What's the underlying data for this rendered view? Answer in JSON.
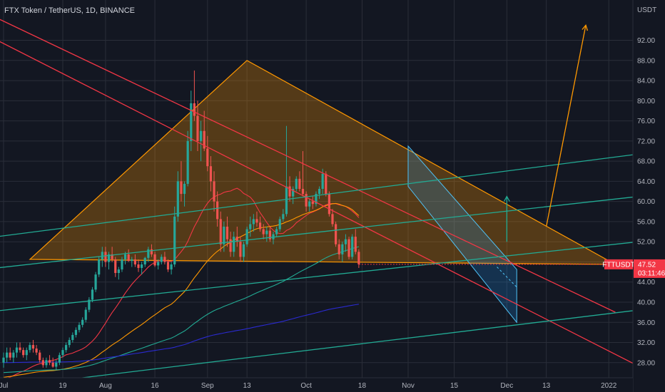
{
  "header": {
    "title": "FTX Token / TetherUS, 1D, BINANCE"
  },
  "colors": {
    "background": "#131722",
    "grid": "#2a2e39",
    "text": "#b2b5be",
    "up": "#26a69a",
    "down": "#ef5350",
    "triangle": "#ff9800",
    "red_line": "#f23645",
    "teal_line": "#22ab94",
    "blue_ma": "#2a2acf",
    "price_tag": "#f23645",
    "wedge": "#2196f3"
  },
  "chart_data": {
    "type": "candlestick",
    "symbol": "FTTUSDT",
    "y_unit": "USDT",
    "ylim": [
      25,
      100
    ],
    "y_ticks": [
      "28.00",
      "32.00",
      "36.00",
      "40.00",
      "44.00",
      "48.00",
      "52.00",
      "56.00",
      "60.00",
      "64.00",
      "68.00",
      "72.00",
      "76.00",
      "80.00",
      "84.00",
      "88.00",
      "92.00"
    ],
    "x_ticks": [
      {
        "label": "Jul",
        "day": 0
      },
      {
        "label": "19",
        "day": 18
      },
      {
        "label": "Aug",
        "day": 31
      },
      {
        "label": "16",
        "day": 46
      },
      {
        "label": "Sep",
        "day": 62
      },
      {
        "label": "13",
        "day": 74
      },
      {
        "label": "Oct",
        "day": 92
      },
      {
        "label": "18",
        "day": 109
      },
      {
        "label": "Nov",
        "day": 123
      },
      {
        "label": "15",
        "day": 137
      },
      {
        "label": "Dec",
        "day": 153
      },
      {
        "label": "13",
        "day": 165
      },
      {
        "label": "2022",
        "day": 184
      }
    ],
    "grid": true,
    "candles": [
      [
        28,
        30,
        27,
        29
      ],
      [
        29,
        31,
        28,
        30
      ],
      [
        30,
        31,
        28.5,
        29
      ],
      [
        29,
        30.5,
        28,
        30
      ],
      [
        30,
        32,
        29,
        31
      ],
      [
        31,
        32,
        30,
        30.5
      ],
      [
        30.5,
        31,
        29,
        29.5
      ],
      [
        29.5,
        31,
        28.5,
        30.5
      ],
      [
        30.5,
        32,
        30,
        31.5
      ],
      [
        31.5,
        32.5,
        30,
        30.8
      ],
      [
        30.8,
        31.5,
        29.5,
        30
      ],
      [
        30,
        30.5,
        28,
        28.5
      ],
      [
        28.5,
        29,
        27,
        27.5
      ],
      [
        27.5,
        29,
        27,
        28.5
      ],
      [
        28.5,
        29.5,
        27.5,
        28
      ],
      [
        28,
        29,
        27,
        27.2
      ],
      [
        27.2,
        28.5,
        26.5,
        28
      ],
      [
        28,
        30,
        27.5,
        29.5
      ],
      [
        29.5,
        31,
        29,
        30.5
      ],
      [
        30.5,
        32,
        30,
        31.5
      ],
      [
        31.5,
        33,
        31,
        32.5
      ],
      [
        32.5,
        34,
        32,
        33.5
      ],
      [
        33.5,
        35,
        33,
        34.5
      ],
      [
        34.5,
        36,
        34,
        35.5
      ],
      [
        35.5,
        37,
        35,
        36.5
      ],
      [
        36.5,
        39,
        36,
        38.5
      ],
      [
        38.5,
        41,
        38,
        40.5
      ],
      [
        40.5,
        43,
        40,
        42.5
      ],
      [
        42.5,
        46,
        42,
        45.5
      ],
      [
        45.5,
        49,
        45,
        48.5
      ],
      [
        48.5,
        51,
        47,
        50
      ],
      [
        50,
        51,
        47,
        48
      ],
      [
        48,
        50,
        46.5,
        49.5
      ],
      [
        49.5,
        51,
        48,
        48.5
      ],
      [
        48.5,
        49,
        45,
        45.8
      ],
      [
        45.8,
        47,
        44.5,
        46.5
      ],
      [
        46.5,
        49,
        46,
        48.5
      ],
      [
        48.5,
        50,
        47.5,
        49.5
      ],
      [
        49.5,
        50.5,
        48,
        48.2
      ],
      [
        48.2,
        49,
        47,
        48.5
      ],
      [
        48.5,
        49.5,
        47,
        47.5
      ],
      [
        47.5,
        48.5,
        46,
        46.8
      ],
      [
        46.8,
        48,
        45.5,
        47.5
      ],
      [
        47.5,
        49,
        47,
        48.8
      ],
      [
        48.8,
        51,
        48,
        50.5
      ],
      [
        50.5,
        51.5,
        49,
        49.5
      ],
      [
        49.5,
        50,
        47,
        47.3
      ],
      [
        47.3,
        48.5,
        46.5,
        48
      ],
      [
        48,
        49.5,
        47.5,
        49
      ],
      [
        49,
        50,
        47.5,
        48
      ],
      [
        48,
        48.5,
        46,
        46.5
      ],
      [
        46.5,
        48,
        45.5,
        47.5
      ],
      [
        47.5,
        59,
        47,
        57
      ],
      [
        57,
        66,
        56,
        64
      ],
      [
        64,
        68,
        60,
        61.5
      ],
      [
        61.5,
        64,
        59,
        63.5
      ],
      [
        63.5,
        74,
        63,
        72
      ],
      [
        72,
        82,
        70,
        79.5
      ],
      [
        79.5,
        86,
        76,
        77
      ],
      [
        77,
        80,
        70,
        72
      ],
      [
        72,
        76,
        68,
        74
      ],
      [
        74,
        78,
        70,
        70.5
      ],
      [
        70.5,
        73,
        66,
        67
      ],
      [
        67,
        69,
        62,
        64
      ],
      [
        64,
        66,
        58,
        60
      ],
      [
        60,
        62,
        55,
        56.5
      ],
      [
        56.5,
        58,
        50,
        51.5
      ],
      [
        51.5,
        56,
        50,
        55
      ],
      [
        55,
        57,
        51,
        52.5
      ],
      [
        52.5,
        54,
        49,
        50
      ],
      [
        50,
        54,
        49,
        53
      ],
      [
        53,
        55,
        51,
        52
      ],
      [
        52,
        53,
        48,
        49
      ],
      [
        49,
        52,
        48,
        51.5
      ],
      [
        51.5,
        55,
        51,
        54.5
      ],
      [
        54.5,
        57,
        53,
        55.5
      ],
      [
        55.5,
        57.5,
        54,
        56.5
      ],
      [
        56.5,
        58,
        55,
        55.8
      ],
      [
        55.8,
        57,
        54,
        54.5
      ],
      [
        54.5,
        55.5,
        52.5,
        53.5
      ],
      [
        53.5,
        55,
        52,
        54.2
      ],
      [
        54.2,
        55,
        52,
        52.5
      ],
      [
        52.5,
        54,
        51.5,
        53.5
      ],
      [
        53.5,
        55,
        53,
        54.5
      ],
      [
        54.5,
        57,
        54,
        56.5
      ],
      [
        56.5,
        58.5,
        56,
        57.5
      ],
      [
        57.5,
        75,
        57,
        63
      ],
      [
        63,
        65,
        60,
        61
      ],
      [
        61,
        63,
        59.5,
        62.5
      ],
      [
        62.5,
        65,
        62,
        64.5
      ],
      [
        64.5,
        66,
        62,
        62.5
      ],
      [
        62.5,
        70,
        61,
        61.5
      ],
      [
        61.5,
        62,
        58,
        59
      ],
      [
        59,
        60.5,
        58,
        60
      ],
      [
        60,
        61,
        58.5,
        59.5
      ],
      [
        59.5,
        62,
        59,
        61.5
      ],
      [
        61.5,
        63,
        60.5,
        62.5
      ],
      [
        62.5,
        66.5,
        61.5,
        65.5
      ],
      [
        65.5,
        66,
        61,
        61.5
      ],
      [
        61.5,
        62,
        57,
        57.5
      ],
      [
        57.5,
        58.5,
        55,
        55.5
      ],
      [
        55.5,
        56,
        51,
        51.5
      ],
      [
        51.5,
        52.5,
        48.5,
        49.5
      ],
      [
        49.5,
        52,
        48,
        51.5
      ],
      [
        51.5,
        53.5,
        50,
        52.5
      ],
      [
        52.5,
        53,
        48.5,
        49
      ],
      [
        49,
        53.5,
        48.5,
        53
      ],
      [
        53,
        54.5,
        49.5,
        50
      ],
      [
        50,
        50.5,
        46.8,
        47.52
      ]
    ],
    "moving_averages": [
      {
        "window": 20,
        "color": "#f23645"
      },
      {
        "window": 50,
        "color": "#ff9800"
      },
      {
        "window": 100,
        "color": "#22ab94"
      },
      {
        "window": 200,
        "color": "#2a2acf"
      }
    ],
    "last_price": "47.52",
    "countdown": "03:11:46",
    "drawings": {
      "triangle": [
        [
          8,
          48.5
        ],
        [
          74,
          88
        ],
        [
          186,
          47.5
        ]
      ],
      "red_lines": [
        [
          [
            -20,
            102
          ],
          [
            186,
            38
          ]
        ],
        [
          [
            -20,
            98
          ],
          [
            200,
            25
          ]
        ]
      ],
      "teal_lines": [
        [
          [
            -20,
            51.5
          ],
          [
            200,
            70
          ]
        ],
        [
          [
            -20,
            45.5
          ],
          [
            200,
            61.5
          ]
        ],
        [
          [
            -20,
            37
          ],
          [
            200,
            52.5
          ]
        ],
        [
          [
            -20,
            21.5
          ],
          [
            200,
            39
          ]
        ]
      ],
      "wedge": [
        [
          123,
          71
        ],
        [
          156,
          46.5
        ],
        [
          156,
          36
        ],
        [
          123,
          63
        ]
      ],
      "wedge_down_arrow": [
        [
          150,
          47
        ],
        [
          156,
          43
        ]
      ],
      "up_arrows": [
        [
          [
            153,
            52
          ],
          [
            153,
            61
          ]
        ],
        [
          [
            165,
            55
          ],
          [
            177,
            95
          ]
        ]
      ]
    }
  }
}
